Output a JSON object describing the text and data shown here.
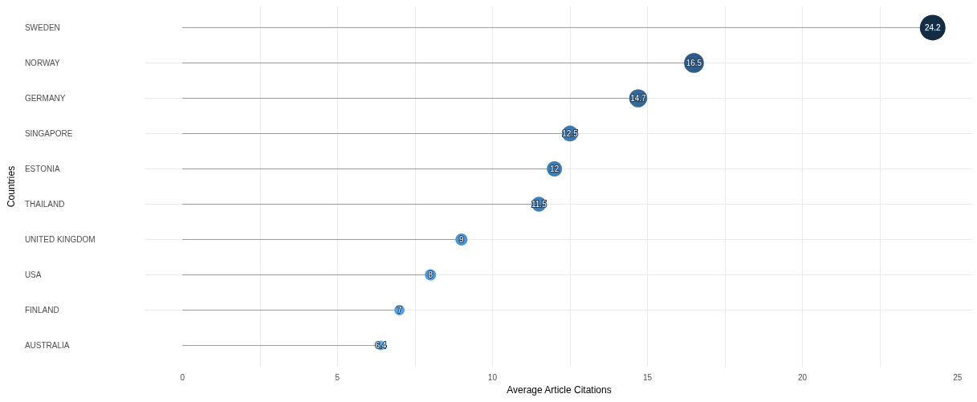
{
  "chart_data": {
    "type": "lollipop",
    "orientation": "horizontal",
    "xlabel": "Average Article Citations",
    "ylabel": "Countries",
    "categories": [
      "SWEDEN",
      "NORWAY",
      "GERMANY",
      "SINGAPORE",
      "ESTONIA",
      "THAILAND",
      "UNITED KINGDOM",
      "USA",
      "FINLAND",
      "AUSTRALIA"
    ],
    "values": [
      24.2,
      16.5,
      14.7,
      12.5,
      12,
      11.5,
      9,
      8,
      7,
      6.4
    ],
    "sizes": [
      1,
      0.6,
      0.5,
      0.38,
      0.35,
      0.33,
      0.22,
      0.19,
      0.16,
      0.14
    ],
    "colors": [
      "#132b43",
      "#2e5b88",
      "#336a98",
      "#3b7bb5",
      "#3c7eb8",
      "#3e80bb",
      "#4a95d3",
      "#4d9bdd",
      "#52a3e6",
      "#56b1f7"
    ],
    "xlim": [
      -1.2,
      25.5
    ],
    "xticks": [
      0,
      {
        "value": 2.5,
        "label": null
      },
      5,
      {
        "value": 7.5,
        "label": null
      },
      10,
      {
        "value": 12.5,
        "label": null
      },
      15,
      {
        "value": 17.5,
        "label": null
      },
      20,
      {
        "value": 22.5,
        "label": null
      },
      25
    ],
    "grid": true,
    "data_labels": true
  }
}
